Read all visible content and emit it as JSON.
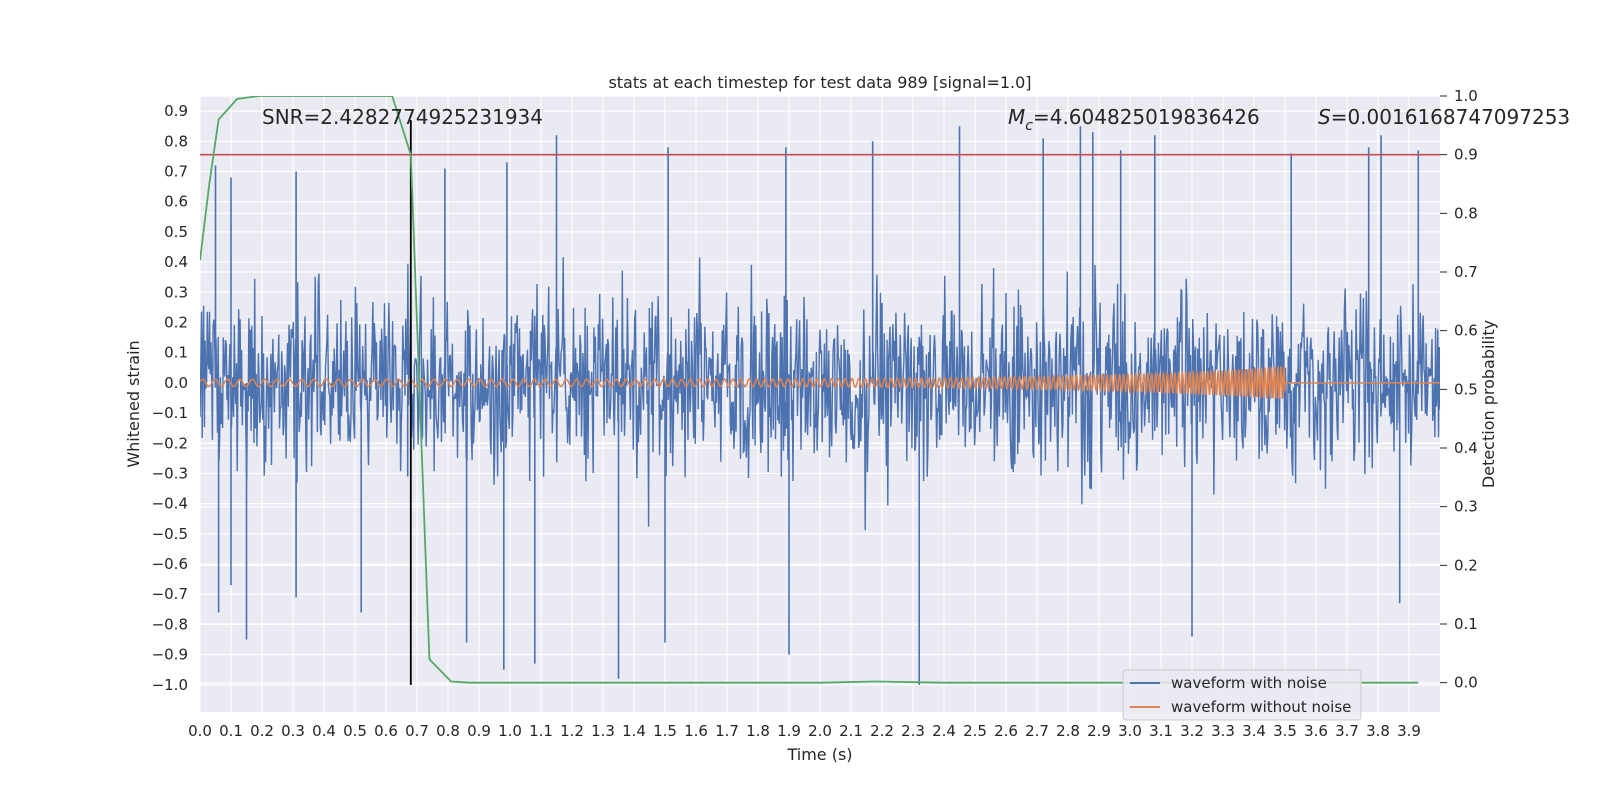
{
  "chart_data": {
    "type": "line",
    "title": "stats at each timestep for test data 989 [signal=1.0]",
    "xlabel": "Time (s)",
    "ylabel": "Whitened strain",
    "y2label": "Detection probability",
    "xlim": [
      0.0,
      4.0
    ],
    "ylim": [
      -1.09,
      0.95
    ],
    "y2lim": [
      -0.05,
      1.0
    ],
    "xticks": [
      "0.0",
      "0.1",
      "0.2",
      "0.3",
      "0.4",
      "0.5",
      "0.6",
      "0.7",
      "0.8",
      "0.9",
      "1.0",
      "1.1",
      "1.2",
      "1.3",
      "1.4",
      "1.5",
      "1.6",
      "1.7",
      "1.8",
      "1.9",
      "2.0",
      "2.1",
      "2.2",
      "2.3",
      "2.4",
      "2.5",
      "2.6",
      "2.7",
      "2.8",
      "2.9",
      "3.0",
      "3.1",
      "3.2",
      "3.3",
      "3.4",
      "3.5",
      "3.6",
      "3.7",
      "3.8",
      "3.9"
    ],
    "yticks": [
      "0.9",
      "0.8",
      "0.7",
      "0.6",
      "0.5",
      "0.4",
      "0.3",
      "0.2",
      "0.1",
      "0.0",
      "−0.1",
      "−0.2",
      "−0.3",
      "−0.4",
      "−0.5",
      "−0.6",
      "−0.7",
      "−0.8",
      "−0.9",
      "−1.0"
    ],
    "y2ticks": [
      "1.0",
      "0.9",
      "0.8",
      "0.7",
      "0.6",
      "0.5",
      "0.4",
      "0.3",
      "0.2",
      "0.1",
      "0.0"
    ],
    "grid": true,
    "legend_position": "lower-right",
    "annotations": {
      "snr": "SNR=2.4282774925231934",
      "mc_symbol": "M",
      "mc_sub": "c",
      "mc_value": "=4.604825019836426",
      "s_symbol": "S",
      "s_value": "=0.0016168747097253"
    },
    "threshold": {
      "y2": 0.9,
      "color": "#c44e52"
    },
    "marker_time": 0.68,
    "series": [
      {
        "name": "waveform with noise",
        "color": "#4c72b0",
        "envelope_approx": 0.45,
        "peaks": [
          [
            0.05,
            0.72
          ],
          [
            0.1,
            0.68
          ],
          [
            0.06,
            -0.76
          ],
          [
            0.1,
            -0.67
          ],
          [
            0.15,
            -0.85
          ],
          [
            0.31,
            0.7
          ],
          [
            0.31,
            -0.71
          ],
          [
            0.52,
            -0.76
          ],
          [
            0.67,
            -0.31
          ],
          [
            0.79,
            0.71
          ],
          [
            0.86,
            -0.86
          ],
          [
            0.99,
            0.73
          ],
          [
            0.98,
            -0.95
          ],
          [
            1.08,
            -0.93
          ],
          [
            1.15,
            0.82
          ],
          [
            1.35,
            -0.98
          ],
          [
            1.51,
            0.78
          ],
          [
            1.5,
            -0.86
          ],
          [
            1.89,
            0.78
          ],
          [
            1.9,
            -0.9
          ],
          [
            2.17,
            0.8
          ],
          [
            2.32,
            -1.0
          ],
          [
            2.45,
            0.85
          ],
          [
            2.72,
            0.81
          ],
          [
            2.84,
            0.85
          ],
          [
            2.88,
            0.83
          ],
          [
            2.97,
            0.77
          ],
          [
            3.08,
            0.82
          ],
          [
            3.2,
            -0.84
          ],
          [
            3.52,
            0.76
          ],
          [
            3.77,
            0.78
          ],
          [
            3.81,
            0.82
          ],
          [
            3.93,
            0.77
          ],
          [
            3.87,
            -0.73
          ]
        ]
      },
      {
        "name": "waveform without noise",
        "color": "#dd8452",
        "amplitude_start": 0.012,
        "amplitude_end": 0.055,
        "end_time": 3.5
      },
      {
        "name": "Detection probability",
        "color": "#55a868",
        "x": [
          0.0,
          0.03,
          0.06,
          0.12,
          0.19,
          0.4,
          0.62,
          0.68,
          0.74,
          0.81,
          0.87,
          1.0,
          1.5,
          2.0,
          2.18,
          2.4,
          2.8,
          3.2,
          3.6,
          3.93
        ],
        "y": [
          0.72,
          0.85,
          0.96,
          0.995,
          1.0,
          1.0,
          1.0,
          0.9,
          0.04,
          0.002,
          0.0,
          0.0,
          0.0,
          0.0,
          0.002,
          0.0,
          0.0,
          0.0,
          0.0,
          0.0
        ]
      }
    ]
  }
}
